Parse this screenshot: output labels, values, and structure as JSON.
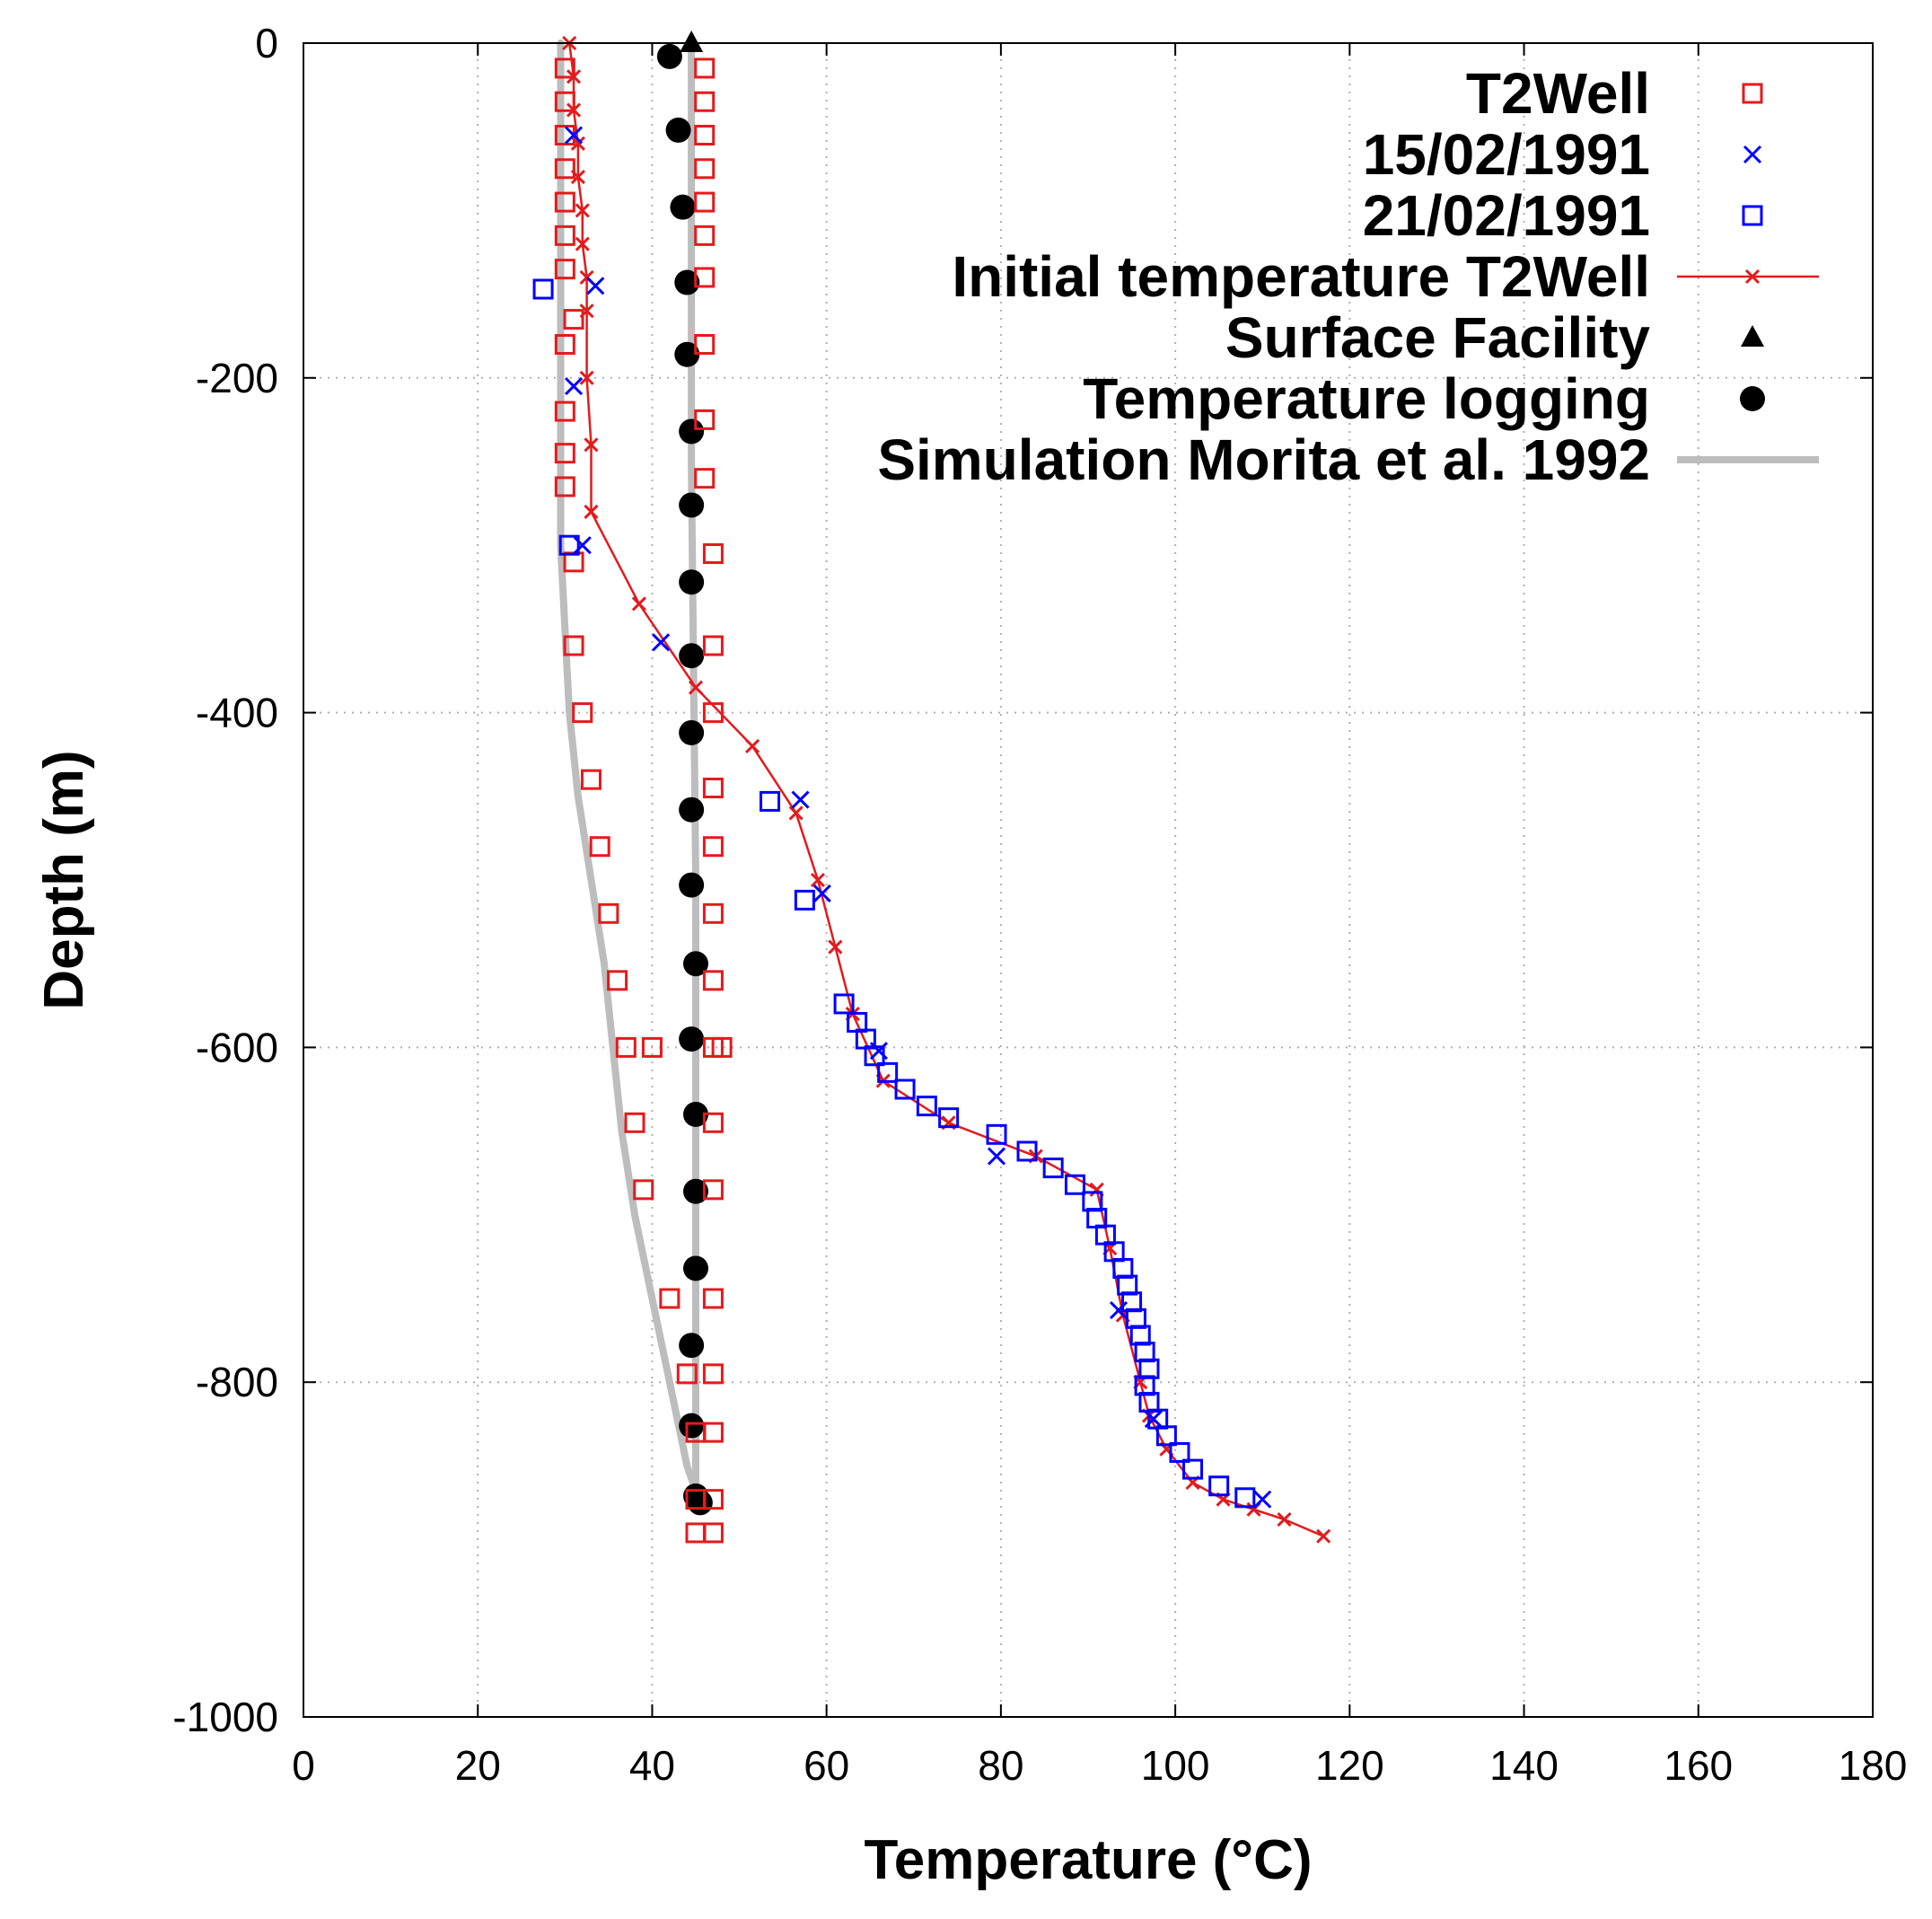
{
  "chart_data": {
    "type": "scatter",
    "title": "",
    "xlabel": "Temperature (°C)",
    "ylabel": "Depth (m)",
    "xlim": [
      0,
      180
    ],
    "ylim": [
      -1000,
      0
    ],
    "xticks": [
      0,
      20,
      40,
      60,
      80,
      100,
      120,
      140,
      160,
      180
    ],
    "yticks": [
      0,
      -200,
      -400,
      -600,
      -800,
      -1000
    ],
    "grid": true,
    "legend_position": "top-right",
    "colors": {
      "red": "#e41a1c",
      "blue": "#0000ff",
      "black": "#000000",
      "gray": "#bdbdbd"
    },
    "series": [
      {
        "name": "T2Well",
        "marker": "open-square",
        "color": "#e41a1c",
        "points": [
          [
            30,
            -15
          ],
          [
            30,
            -35
          ],
          [
            30,
            -55
          ],
          [
            30,
            -75
          ],
          [
            30,
            -95
          ],
          [
            30,
            -115
          ],
          [
            30,
            -135
          ],
          [
            31,
            -165
          ],
          [
            30,
            -180
          ],
          [
            30,
            -220
          ],
          [
            30,
            -245
          ],
          [
            30,
            -265
          ],
          [
            31,
            -310
          ],
          [
            31,
            -360
          ],
          [
            32,
            -400
          ],
          [
            33,
            -440
          ],
          [
            34,
            -480
          ],
          [
            35,
            -520
          ],
          [
            36,
            -560
          ],
          [
            37,
            -600
          ],
          [
            38,
            -645
          ],
          [
            39,
            -685
          ],
          [
            42,
            -750
          ],
          [
            44,
            -795
          ],
          [
            45,
            -830
          ],
          [
            45,
            -870
          ],
          [
            45,
            -890
          ],
          [
            46,
            -15
          ],
          [
            46,
            -35
          ],
          [
            46,
            -55
          ],
          [
            46,
            -75
          ],
          [
            46,
            -95
          ],
          [
            46,
            -115
          ],
          [
            46,
            -140
          ],
          [
            46,
            -180
          ],
          [
            46,
            -225
          ],
          [
            46,
            -260
          ],
          [
            47,
            -305
          ],
          [
            47,
            -360
          ],
          [
            47,
            -400
          ],
          [
            47,
            -445
          ],
          [
            47,
            -480
          ],
          [
            47,
            -520
          ],
          [
            47,
            -560
          ],
          [
            47,
            -600
          ],
          [
            47,
            -645
          ],
          [
            47,
            -685
          ],
          [
            47,
            -750
          ],
          [
            47,
            -795
          ],
          [
            47,
            -830
          ],
          [
            47,
            -870
          ],
          [
            47,
            -890
          ],
          [
            40,
            -600
          ],
          [
            48,
            -600
          ]
        ]
      },
      {
        "name": "15/02/1991",
        "marker": "x",
        "color": "#0000ff",
        "points": [
          [
            31,
            -55
          ],
          [
            33.5,
            -145
          ],
          [
            31,
            -205
          ],
          [
            32,
            -300
          ],
          [
            41,
            -358
          ],
          [
            57,
            -452
          ],
          [
            59.5,
            -508
          ],
          [
            66,
            -602
          ],
          [
            79.5,
            -665
          ],
          [
            93.5,
            -757
          ],
          [
            97.5,
            -822
          ],
          [
            110,
            -870
          ]
        ]
      },
      {
        "name": "21/02/1991",
        "marker": "open-square",
        "color": "#0000ff",
        "points": [
          [
            27.5,
            -147
          ],
          [
            30.5,
            -300
          ],
          [
            53.5,
            -453
          ],
          [
            57.5,
            -512
          ],
          [
            62,
            -574
          ],
          [
            63.5,
            -585
          ],
          [
            64.5,
            -595
          ],
          [
            65.5,
            -605
          ],
          [
            67,
            -615
          ],
          [
            69,
            -625
          ],
          [
            71.5,
            -635
          ],
          [
            74,
            -642
          ],
          [
            79.5,
            -652
          ],
          [
            83,
            -662
          ],
          [
            86,
            -672
          ],
          [
            88.5,
            -682
          ],
          [
            90.5,
            -692
          ],
          [
            91,
            -702
          ],
          [
            92,
            -712
          ],
          [
            93,
            -722
          ],
          [
            94,
            -732
          ],
          [
            94.5,
            -742
          ],
          [
            95,
            -752
          ],
          [
            95.5,
            -762
          ],
          [
            96,
            -772
          ],
          [
            96.5,
            -782
          ],
          [
            97,
            -792
          ],
          [
            96.5,
            -802
          ],
          [
            97,
            -812
          ],
          [
            98,
            -822
          ],
          [
            99,
            -832
          ],
          [
            100.5,
            -842
          ],
          [
            102,
            -852
          ],
          [
            105,
            -862
          ],
          [
            108,
            -869
          ]
        ]
      },
      {
        "name": "Initial temperature T2Well",
        "marker": "x-line",
        "color": "#e41a1c",
        "points": [
          [
            30.5,
            0
          ],
          [
            31,
            -20
          ],
          [
            31,
            -40
          ],
          [
            31.5,
            -60
          ],
          [
            31.5,
            -80
          ],
          [
            32,
            -100
          ],
          [
            32,
            -120
          ],
          [
            32.5,
            -140
          ],
          [
            32.5,
            -160
          ],
          [
            32.5,
            -200
          ],
          [
            33,
            -240
          ],
          [
            33,
            -280
          ],
          [
            38.5,
            -335
          ],
          [
            45,
            -385
          ],
          [
            51.5,
            -420
          ],
          [
            56.5,
            -460
          ],
          [
            59,
            -500
          ],
          [
            61,
            -540
          ],
          [
            63,
            -580
          ],
          [
            66.5,
            -620
          ],
          [
            74,
            -645
          ],
          [
            84,
            -665
          ],
          [
            91,
            -685
          ],
          [
            92.5,
            -720
          ],
          [
            94,
            -760
          ],
          [
            96,
            -800
          ],
          [
            97,
            -820
          ],
          [
            99,
            -840
          ],
          [
            102,
            -860
          ],
          [
            105.5,
            -870
          ],
          [
            109,
            -876
          ],
          [
            112.5,
            -882
          ],
          [
            117,
            -892
          ]
        ]
      },
      {
        "name": "Surface Facility",
        "marker": "triangle",
        "color": "#000000",
        "points": [
          [
            44.5,
            0
          ]
        ]
      },
      {
        "name": "Temperature logging",
        "marker": "filled-circle",
        "color": "#000000",
        "points": [
          [
            42,
            -8
          ],
          [
            43,
            -52
          ],
          [
            43.5,
            -98
          ],
          [
            44,
            -143
          ],
          [
            44,
            -186
          ],
          [
            44.5,
            -232
          ],
          [
            44.5,
            -276
          ],
          [
            44.5,
            -322
          ],
          [
            44.5,
            -366
          ],
          [
            44.5,
            -412
          ],
          [
            44.5,
            -458
          ],
          [
            44.5,
            -503
          ],
          [
            45,
            -550
          ],
          [
            44.5,
            -595
          ],
          [
            45,
            -640
          ],
          [
            45,
            -686
          ],
          [
            45,
            -732
          ],
          [
            44.5,
            -778
          ],
          [
            44.5,
            -826
          ],
          [
            45,
            -868
          ],
          [
            45.5,
            -872
          ]
        ]
      },
      {
        "name": "Simulation Morita et al. 1992",
        "marker": "line",
        "color": "#bdbdbd",
        "points": [
          [
            29.5,
            0
          ],
          [
            29.5,
            -100
          ],
          [
            29.5,
            -200
          ],
          [
            29.5,
            -300
          ],
          [
            30,
            -350
          ],
          [
            30.5,
            -400
          ],
          [
            31.5,
            -450
          ],
          [
            33,
            -500
          ],
          [
            34.5,
            -550
          ],
          [
            35.5,
            -600
          ],
          [
            36.5,
            -650
          ],
          [
            38,
            -700
          ],
          [
            40,
            -750
          ],
          [
            42,
            -800
          ],
          [
            44,
            -850
          ],
          [
            45,
            -865
          ],
          [
            45,
            -750
          ],
          [
            45,
            -500
          ],
          [
            44.5,
            -250
          ],
          [
            44.5,
            -50
          ],
          [
            44.5,
            0
          ]
        ]
      }
    ]
  }
}
